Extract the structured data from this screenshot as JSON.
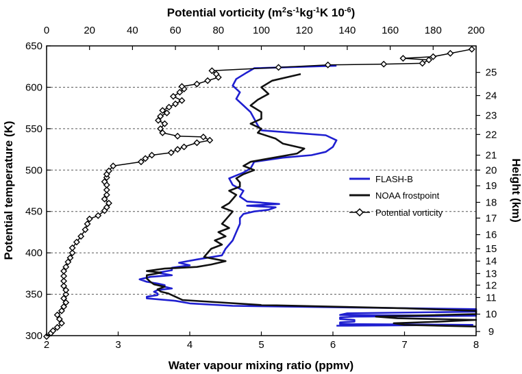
{
  "chart_data": {
    "type": "line",
    "title": "",
    "axes": {
      "bottom": {
        "label": "Water vapour mixing ratio (ppmv)",
        "range": [
          2,
          8
        ],
        "ticks": [
          "2",
          "3",
          "4",
          "5",
          "6",
          "7",
          "8"
        ]
      },
      "top": {
        "label_main": "Potential vorticity (m",
        "label_sup1": "2",
        "label_mid1": "s",
        "label_sup2": "-1",
        "label_mid2": "kg",
        "label_sup3": "-1",
        "label_mid3": "K  10",
        "label_sup4": "-6",
        "label_end": ")",
        "range": [
          0,
          200
        ],
        "ticks": [
          "0",
          "20",
          "40",
          "60",
          "80",
          "100",
          "120",
          "140",
          "160",
          "180",
          "200"
        ]
      },
      "left": {
        "label": "Potential temperature (K)",
        "range": [
          300,
          650
        ],
        "ticks": [
          "300",
          "350",
          "400",
          "450",
          "500",
          "550",
          "600",
          "650"
        ]
      },
      "right": {
        "label": "Height (km)",
        "ticks": [
          {
            "label": "9",
            "theta": 305
          },
          {
            "label": "10",
            "theta": 326
          },
          {
            "label": "11",
            "theta": 346
          },
          {
            "label": "12",
            "theta": 361
          },
          {
            "label": "13",
            "theta": 375
          },
          {
            "label": "14",
            "theta": 390
          },
          {
            "label": "15",
            "theta": 405
          },
          {
            "label": "16",
            "theta": 422
          },
          {
            "label": "17",
            "theta": 442
          },
          {
            "label": "18",
            "theta": 461
          },
          {
            "label": "19",
            "theta": 481
          },
          {
            "label": "20",
            "theta": 500
          },
          {
            "label": "21",
            "theta": 518
          },
          {
            "label": "22",
            "theta": 543
          },
          {
            "label": "23",
            "theta": 566
          },
          {
            "label": "24",
            "theta": 590
          },
          {
            "label": "25",
            "theta": 618
          }
        ]
      }
    },
    "gridlines_theta": [
      350,
      400,
      450,
      500,
      550,
      600
    ],
    "legend": {
      "position": "right",
      "entries": [
        "FLASH-B",
        "NOAA frostpoint",
        "Potential vorticity"
      ]
    },
    "colors": {
      "flash_b": "#1f1fd0",
      "noaa": "#111111",
      "pv": "#000000"
    },
    "series": [
      {
        "name": "FLASH-B",
        "x_unit": "ppmv",
        "points": [
          [
            6.05,
            312
          ],
          [
            7.95,
            313
          ],
          [
            6.1,
            314
          ],
          [
            6.1,
            316
          ],
          [
            6.3,
            317
          ],
          [
            6.3,
            319
          ],
          [
            6.1,
            320
          ],
          [
            6.1,
            322
          ],
          [
            6.3,
            323
          ],
          [
            8.0,
            324
          ],
          [
            6.1,
            325
          ],
          [
            6.2,
            327
          ],
          [
            8.0,
            329
          ],
          [
            8.0,
            332
          ],
          [
            6.3,
            334
          ],
          [
            4.6,
            336
          ],
          [
            4.0,
            339
          ],
          [
            3.8,
            342
          ],
          [
            3.4,
            345
          ],
          [
            3.4,
            347
          ],
          [
            3.55,
            349
          ],
          [
            3.55,
            351
          ],
          [
            3.5,
            353
          ],
          [
            3.55,
            355
          ],
          [
            3.75,
            357
          ],
          [
            3.65,
            359
          ],
          [
            3.65,
            361
          ],
          [
            3.55,
            363
          ],
          [
            3.4,
            365
          ],
          [
            3.3,
            368
          ],
          [
            3.45,
            371
          ],
          [
            3.75,
            373
          ],
          [
            3.55,
            376
          ],
          [
            3.75,
            379
          ],
          [
            3.75,
            382
          ],
          [
            4.0,
            385
          ],
          [
            3.85,
            388
          ],
          [
            4.1,
            392
          ],
          [
            4.45,
            397
          ],
          [
            4.5,
            405
          ],
          [
            4.6,
            415
          ],
          [
            4.65,
            425
          ],
          [
            4.7,
            435
          ],
          [
            4.7,
            442
          ],
          [
            4.75,
            447
          ],
          [
            4.9,
            450
          ],
          [
            5.1,
            452
          ],
          [
            5.2,
            455
          ],
          [
            4.8,
            457
          ],
          [
            5.25,
            459
          ],
          [
            4.8,
            462
          ],
          [
            4.7,
            468
          ],
          [
            4.75,
            475
          ],
          [
            4.6,
            482
          ],
          [
            4.55,
            490
          ],
          [
            4.75,
            497
          ],
          [
            4.85,
            502
          ],
          [
            4.9,
            510
          ],
          [
            5.3,
            515
          ],
          [
            5.7,
            518
          ],
          [
            5.9,
            522
          ],
          [
            6.0,
            528
          ],
          [
            6.05,
            536
          ],
          [
            5.9,
            542
          ],
          [
            5.3,
            546
          ],
          [
            5.0,
            548
          ],
          [
            4.95,
            554
          ],
          [
            4.9,
            562
          ],
          [
            4.85,
            570
          ],
          [
            4.75,
            578
          ],
          [
            4.65,
            586
          ],
          [
            4.7,
            594
          ],
          [
            4.6,
            602
          ],
          [
            4.65,
            610
          ],
          [
            4.8,
            618
          ],
          [
            4.9,
            623
          ],
          [
            6.05,
            626
          ]
        ]
      },
      {
        "name": "NOAA frostpoint",
        "x_unit": "ppmv",
        "points": [
          [
            8.0,
            311
          ],
          [
            7.0,
            313
          ],
          [
            6.85,
            315
          ],
          [
            7.5,
            317
          ],
          [
            8.0,
            319
          ],
          [
            6.9,
            321
          ],
          [
            6.6,
            323
          ],
          [
            8.0,
            326
          ],
          [
            8.0,
            330
          ],
          [
            7.0,
            333
          ],
          [
            5.0,
            337
          ],
          [
            3.9,
            343
          ],
          [
            3.8,
            347
          ],
          [
            3.7,
            351
          ],
          [
            3.6,
            353
          ],
          [
            3.55,
            356
          ],
          [
            3.65,
            359
          ],
          [
            3.5,
            362
          ],
          [
            3.45,
            365
          ],
          [
            3.4,
            369
          ],
          [
            3.4,
            373
          ],
          [
            3.6,
            376
          ],
          [
            3.4,
            378
          ],
          [
            3.65,
            381
          ],
          [
            4.1,
            383
          ],
          [
            4.3,
            386
          ],
          [
            4.5,
            390
          ],
          [
            4.2,
            395
          ],
          [
            4.25,
            400
          ],
          [
            4.3,
            405
          ],
          [
            4.45,
            410
          ],
          [
            4.35,
            415
          ],
          [
            4.5,
            420
          ],
          [
            4.4,
            425
          ],
          [
            4.55,
            430
          ],
          [
            4.45,
            435
          ],
          [
            4.5,
            440
          ],
          [
            4.55,
            445
          ],
          [
            4.6,
            450
          ],
          [
            4.45,
            455
          ],
          [
            4.55,
            460
          ],
          [
            4.6,
            465
          ],
          [
            4.65,
            470
          ],
          [
            4.55,
            475
          ],
          [
            4.7,
            480
          ],
          [
            4.7,
            485
          ],
          [
            4.65,
            490
          ],
          [
            4.75,
            495
          ],
          [
            4.9,
            500
          ],
          [
            4.75,
            505
          ],
          [
            4.85,
            510
          ],
          [
            5.5,
            520
          ],
          [
            5.6,
            526
          ],
          [
            5.3,
            532
          ],
          [
            5.2,
            538
          ],
          [
            4.95,
            545
          ],
          [
            5.0,
            550
          ],
          [
            4.85,
            556
          ],
          [
            5.0,
            562
          ],
          [
            5.0,
            570
          ],
          [
            4.85,
            578
          ],
          [
            4.95,
            585
          ],
          [
            5.1,
            592
          ],
          [
            5.0,
            600
          ],
          [
            5.15,
            608
          ],
          [
            5.55,
            616
          ]
        ]
      },
      {
        "name": "Potential vorticity",
        "x_unit": "PV units (top axis)",
        "points": [
          [
            0,
            299
          ],
          [
            2,
            303
          ],
          [
            3,
            306
          ],
          [
            5,
            310
          ],
          [
            7,
            315
          ],
          [
            6,
            320
          ],
          [
            5,
            325
          ],
          [
            7,
            330
          ],
          [
            8,
            335
          ],
          [
            9,
            340
          ],
          [
            8,
            345
          ],
          [
            9,
            350
          ],
          [
            9,
            355
          ],
          [
            8,
            360
          ],
          [
            8,
            366
          ],
          [
            8,
            372
          ],
          [
            8,
            378
          ],
          [
            9,
            383
          ],
          [
            10,
            389
          ],
          [
            11,
            394
          ],
          [
            12,
            400
          ],
          [
            12,
            406
          ],
          [
            14,
            413
          ],
          [
            16,
            420
          ],
          [
            18,
            428
          ],
          [
            19,
            435
          ],
          [
            20,
            441
          ],
          [
            24,
            445
          ],
          [
            27,
            451
          ],
          [
            28,
            455
          ],
          [
            29,
            460
          ],
          [
            27,
            465
          ],
          [
            28,
            470
          ],
          [
            28,
            476
          ],
          [
            28,
            482
          ],
          [
            27,
            486
          ],
          [
            28,
            491
          ],
          [
            28,
            495
          ],
          [
            29,
            499
          ],
          [
            31,
            505
          ],
          [
            44,
            510
          ],
          [
            46,
            514
          ],
          [
            49,
            518
          ],
          [
            58,
            521
          ],
          [
            61,
            525
          ],
          [
            64,
            528
          ],
          [
            70,
            533
          ],
          [
            76,
            536
          ],
          [
            73,
            540
          ],
          [
            61,
            541
          ],
          [
            54,
            545
          ],
          [
            53,
            550
          ],
          [
            55,
            556
          ],
          [
            52,
            560
          ],
          [
            53,
            565
          ],
          [
            56,
            569
          ],
          [
            54,
            572
          ],
          [
            57,
            576
          ],
          [
            60,
            580
          ],
          [
            63,
            584
          ],
          [
            59,
            589
          ],
          [
            62,
            594
          ],
          [
            64,
            598
          ],
          [
            63,
            601
          ],
          [
            70,
            604
          ],
          [
            75,
            608
          ],
          [
            80,
            612
          ],
          [
            79,
            616
          ],
          [
            77,
            620
          ],
          [
            108,
            624
          ],
          [
            131,
            627
          ],
          [
            157,
            628
          ],
          [
            175,
            629
          ],
          [
            178,
            633
          ],
          [
            166,
            635
          ],
          [
            180,
            637
          ],
          [
            188,
            641
          ],
          [
            198,
            646
          ]
        ]
      }
    ]
  }
}
